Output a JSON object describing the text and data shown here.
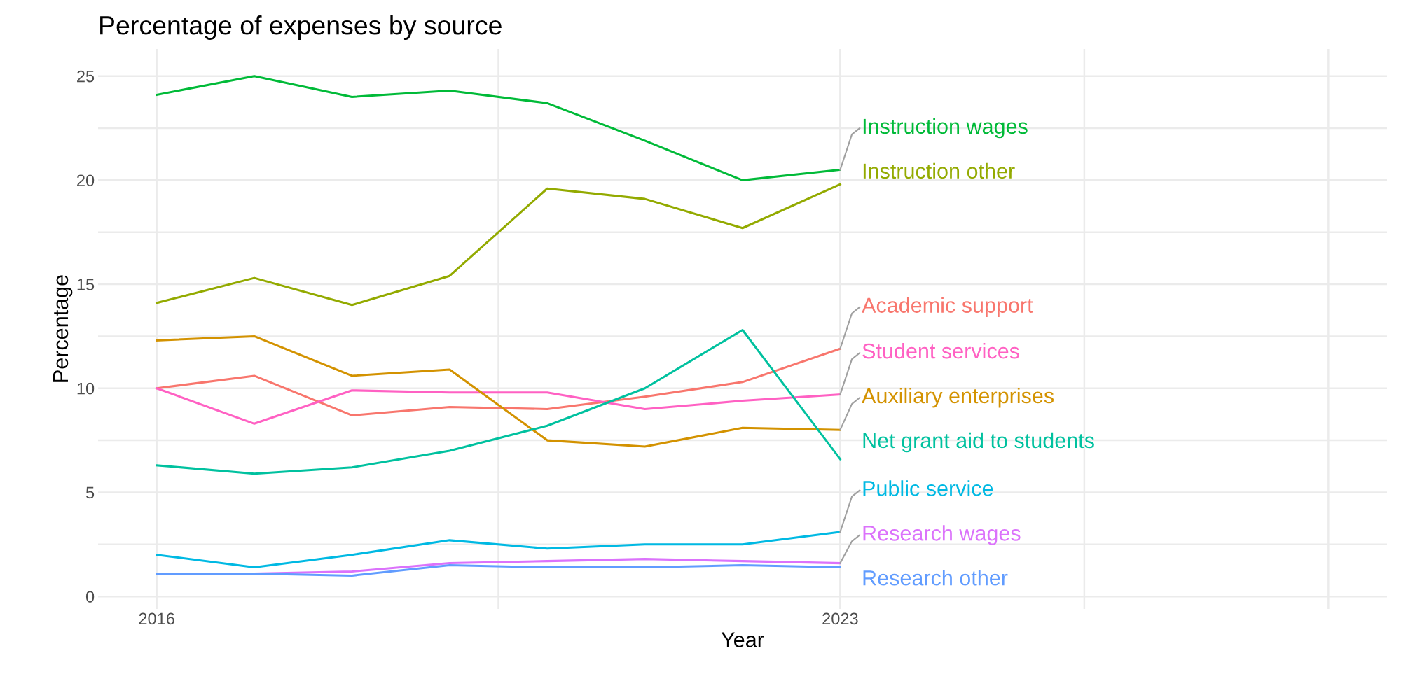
{
  "chart_data": {
    "type": "line",
    "title": "Percentage of expenses by source",
    "xlabel": "Year",
    "ylabel": "Percentage",
    "x": [
      2016,
      2017,
      2018,
      2019,
      2020,
      2021,
      2022,
      2023
    ],
    "series": [
      {
        "name": "Instruction wages",
        "color": "#00ba38",
        "values": [
          24.1,
          25.0,
          24.0,
          24.3,
          23.7,
          21.9,
          20.0,
          20.5
        ]
      },
      {
        "name": "Instruction other",
        "color": "#93aa00",
        "values": [
          14.1,
          15.3,
          14.0,
          15.4,
          19.6,
          19.1,
          17.7,
          19.8
        ]
      },
      {
        "name": "Academic support",
        "color": "#f8766d",
        "values": [
          10.0,
          10.6,
          8.7,
          9.1,
          9.0,
          9.6,
          10.3,
          11.9
        ]
      },
      {
        "name": "Student services",
        "color": "#ff61c3",
        "values": [
          10.0,
          8.3,
          9.9,
          9.8,
          9.8,
          9.0,
          9.4,
          9.7
        ]
      },
      {
        "name": "Auxiliary enterprises",
        "color": "#d39200",
        "values": [
          12.3,
          12.5,
          10.6,
          10.9,
          7.5,
          7.2,
          8.1,
          8.0
        ]
      },
      {
        "name": "Net grant aid to students",
        "color": "#00c19f",
        "values": [
          6.3,
          5.9,
          6.2,
          7.0,
          8.2,
          10.0,
          12.8,
          6.6
        ]
      },
      {
        "name": "Public service",
        "color": "#00b9e3",
        "values": [
          2.0,
          1.4,
          2.0,
          2.7,
          2.3,
          2.5,
          2.5,
          3.1
        ]
      },
      {
        "name": "Research wages",
        "color": "#db72fb",
        "values": [
          1.1,
          1.1,
          1.2,
          1.6,
          1.7,
          1.8,
          1.7,
          1.6
        ]
      },
      {
        "name": "Research other",
        "color": "#619cff",
        "values": [
          1.1,
          1.1,
          1.0,
          1.5,
          1.4,
          1.4,
          1.5,
          1.4
        ]
      }
    ],
    "xlim": [
      2015.4,
      2028.6
    ],
    "xticks": [
      2016,
      {
        "value": 2019.5,
        "label": null
      },
      2023,
      {
        "value": 2025.5,
        "label": null
      },
      {
        "value": 2028,
        "label": null
      }
    ],
    "ylim": [
      -0.6,
      26.3
    ],
    "yticks": [
      0,
      {
        "value": 2.5,
        "label": null
      },
      5,
      {
        "value": 7.5,
        "label": null
      },
      10,
      {
        "value": 12.5,
        "label": null
      },
      15,
      {
        "value": 17.5,
        "label": null
      },
      20,
      {
        "value": 22.5,
        "label": null
      },
      25
    ],
    "grid": true,
    "legend": false,
    "marker": "none",
    "line_style": "solid"
  }
}
